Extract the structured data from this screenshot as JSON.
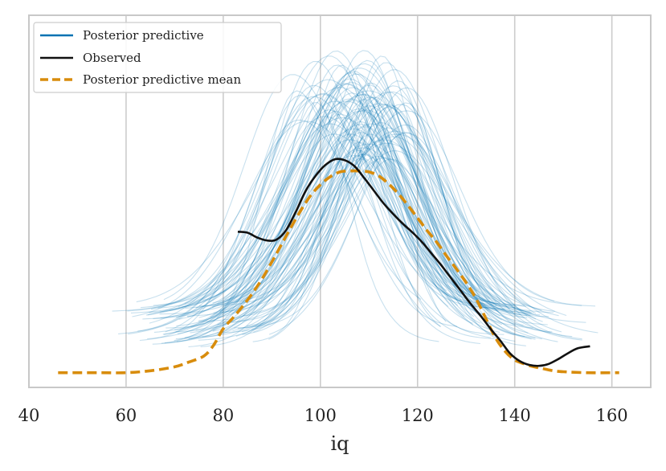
{
  "chart_data": {
    "type": "line",
    "title": "",
    "xlabel": "iq",
    "ylabel": "",
    "xlim": [
      40,
      168
    ],
    "ylim": [
      -0.0015,
      0.0365
    ],
    "x_ticks": [
      40,
      60,
      80,
      100,
      120,
      140,
      160
    ],
    "x_tick_labels": [
      "40",
      "60",
      "80",
      "100",
      "120",
      "140",
      "160"
    ],
    "grid": "vertical",
    "legend_position": "top-left",
    "legend": [
      {
        "label": "Posterior predictive",
        "style": "solid",
        "color": "#0072b2"
      },
      {
        "label": "Observed",
        "style": "solid",
        "color": "#111111"
      },
      {
        "label": "Posterior predictive mean",
        "style": "dashed",
        "color": "#d88c0c"
      }
    ],
    "colors": {
      "posterior": "#0072b2",
      "observed": "#111111",
      "mean": "#d88c0c",
      "grid": "#cccccc",
      "frame": "#c8c8c8"
    },
    "posterior_predictive": {
      "n_draws": 100,
      "approx_mean_center_range": [
        97,
        117
      ],
      "approx_std_range": [
        9,
        16
      ],
      "approx_peak_density_range": [
        0.022,
        0.033
      ]
    },
    "series": [
      {
        "name": "Observed",
        "x": [
          83,
          85,
          87,
          89,
          91,
          93,
          95,
          97,
          99,
          101,
          103,
          105,
          107,
          109,
          111,
          113,
          115,
          117,
          119,
          121,
          123,
          125,
          127,
          129,
          131,
          133,
          135,
          137,
          139,
          141,
          143,
          145,
          147,
          149,
          151,
          153,
          155.5
        ],
        "y": [
          0.0144,
          0.0143,
          0.0138,
          0.0135,
          0.0136,
          0.0146,
          0.0165,
          0.0186,
          0.0201,
          0.0212,
          0.0218,
          0.0217,
          0.0211,
          0.0199,
          0.0186,
          0.0173,
          0.0162,
          0.0152,
          0.0143,
          0.0133,
          0.0121,
          0.0109,
          0.0096,
          0.0083,
          0.007,
          0.0058,
          0.0045,
          0.0033,
          0.002,
          0.0012,
          0.0008,
          0.0007,
          0.0009,
          0.0014,
          0.002,
          0.0025,
          0.0027
        ]
      },
      {
        "name": "Posterior predictive mean",
        "x": [
          46,
          50,
          55,
          60,
          65,
          70,
          73,
          76,
          78,
          80,
          82,
          84,
          86,
          88,
          90,
          92,
          94,
          96,
          98,
          100,
          102,
          104,
          106,
          108,
          110,
          112,
          114,
          116,
          118,
          120,
          122,
          124,
          126,
          128,
          130,
          132,
          134,
          136,
          138,
          140,
          142,
          144,
          146,
          148,
          150,
          155,
          161.5
        ],
        "y": [
          0.0,
          0.0,
          0.0,
          0.0,
          0.0002,
          0.0006,
          0.0011,
          0.0017,
          0.0028,
          0.0045,
          0.0056,
          0.0068,
          0.0081,
          0.0096,
          0.0113,
          0.0131,
          0.0149,
          0.0166,
          0.0181,
          0.0192,
          0.02,
          0.0205,
          0.0206,
          0.0206,
          0.0205,
          0.0201,
          0.0193,
          0.0183,
          0.0171,
          0.0158,
          0.0145,
          0.0133,
          0.0119,
          0.0106,
          0.0092,
          0.0076,
          0.0056,
          0.0036,
          0.0022,
          0.0013,
          0.0009,
          0.0006,
          0.0004,
          0.0002,
          0.0001,
          0.0,
          0.0
        ]
      }
    ]
  }
}
